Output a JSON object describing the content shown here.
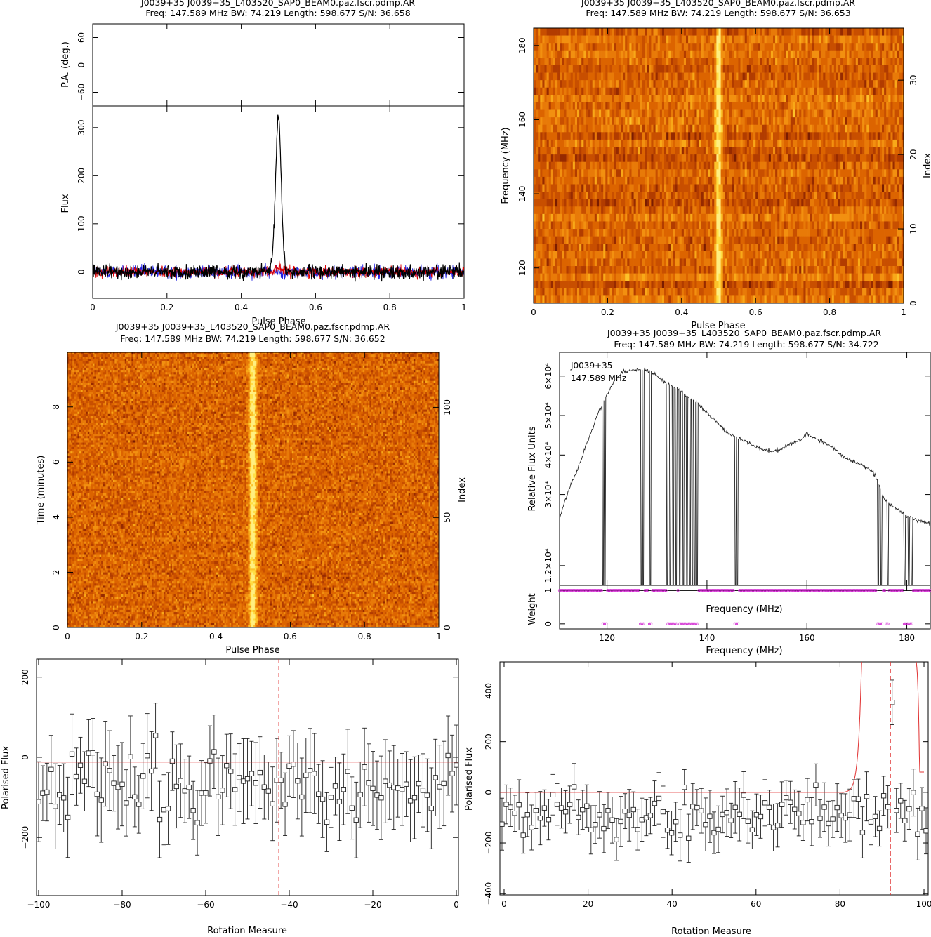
{
  "chart_data": [
    {
      "id": "p1",
      "type": "line",
      "title_line1": "J0039+35  J0039+35_L403520_SAP0_BEAM0.paz.fscr.pdmp.AR",
      "title_line2": "Freq: 147.589 MHz BW: 74.219 Length: 598.677 S/N: 36.658",
      "pa_ylabel": "P.A. (deg.)",
      "pa_ticks": [
        "-60",
        "0",
        "60"
      ],
      "pa_ylim": [
        -90,
        90
      ],
      "ylabel": "Flux",
      "xlabel": "Pulse Phase",
      "xlim": [
        0,
        1
      ],
      "ylim": [
        -55,
        345
      ],
      "x_ticks": [
        "0",
        "0.2",
        "0.4",
        "0.6",
        "0.8",
        "1"
      ],
      "y_ticks": [
        "0",
        "100",
        "200",
        "300"
      ],
      "series": [
        {
          "values_desc": "total intensity",
          "color": "#000000",
          "peak": {
            "x": 0.5,
            "y": 323
          },
          "noise_level": 10
        },
        {
          "values_desc": "linear",
          "color": "#e00000",
          "noise_level": 8
        },
        {
          "values_desc": "circular",
          "color": "#2020e0",
          "noise_level": 10
        }
      ]
    },
    {
      "id": "p2",
      "type": "heatmap",
      "title_line1": "J0039+35  J0039+35_L403520_SAP0_BEAM0.paz.fscr.pdmp.AR",
      "title_line2": "Freq: 147.589 MHz BW: 74.219 Length: 598.677 S/N: 36.653",
      "xlabel": "Pulse Phase",
      "ylabel": "Frequency (MHz)",
      "right_label": "Index",
      "xlim": [
        0,
        1
      ],
      "ylim": [
        110.48,
        184.7
      ],
      "x_ticks": [
        "0",
        "0.2",
        "0.4",
        "0.6",
        "0.8",
        "1"
      ],
      "y_ticks": [
        "120",
        "140",
        "160",
        "180"
      ],
      "right_ticks": [
        "0",
        "10",
        "20",
        "30"
      ],
      "right_lim": [
        0,
        37
      ],
      "pulse_phase": 0.5
    },
    {
      "id": "p3",
      "type": "heatmap",
      "title_line1": "J0039+35  J0039+35_L403520_SAP0_BEAM0.paz.fscr.pdmp.AR",
      "title_line2": "Freq: 147.589 MHz BW: 74.219 Length: 598.677 S/N: 36.652",
      "xlabel": "Pulse Phase",
      "ylabel": "Time (minutes)",
      "right_label": "Index",
      "xlim": [
        0,
        1
      ],
      "ylim": [
        0,
        9.98
      ],
      "x_ticks": [
        "0",
        "0.2",
        "0.4",
        "0.6",
        "0.8",
        "1"
      ],
      "y_ticks": [
        "0",
        "2",
        "4",
        "6",
        "8"
      ],
      "right_ticks": [
        "0",
        "50",
        "100"
      ],
      "right_lim": [
        0,
        125
      ],
      "pulse_phase": 0.5
    },
    {
      "id": "p4",
      "type": "line",
      "title_line1": "J0039+35  J0039+35_L403520_SAP0_BEAM0.paz.fscr.pdmp.AR",
      "title_line2": "Freq: 147.589 MHz BW: 74.219 Length: 598.677 S/N: 34.722",
      "legend_line1": "J0039+35",
      "legend_line2": "147.589 MHz",
      "ylabel": "Relative Flux Units",
      "xlabel": "Frequency (MHz)",
      "weight_label": "Weight",
      "weight_xlabel": "Frequency (MHz)",
      "weight_ticks": [
        "0",
        "1"
      ],
      "xlim": [
        110.5,
        184.7
      ],
      "ylim": [
        7000,
        66000
      ],
      "x_ticks": [
        "120",
        "140",
        "160",
        "180"
      ],
      "y_tick_labels": [
        "1.2×10⁴",
        "3×10⁴",
        "4×10⁴",
        "5×10⁴",
        "6×10⁴"
      ],
      "y_tick_values": [
        12000,
        30000,
        40000,
        50000,
        60000
      ],
      "bandpass": {
        "x": [
          110.5,
          112,
          114,
          116,
          118,
          119.5,
          121,
          123,
          125,
          127,
          129,
          131,
          133,
          135,
          137,
          139,
          141,
          143,
          145,
          147,
          149,
          151,
          153,
          155,
          157,
          159,
          160,
          161,
          163,
          165,
          167,
          169,
          171,
          173,
          174,
          175,
          176,
          178,
          180,
          182,
          184.7
        ],
        "y": [
          24000,
          30000,
          36000,
          43000,
          50000,
          54000,
          58000,
          61000,
          61500,
          61800,
          61000,
          59000,
          57500,
          56000,
          54000,
          52000,
          49500,
          47000,
          45000,
          44000,
          42500,
          41500,
          41000,
          41500,
          43000,
          44000,
          45500,
          44500,
          43500,
          42000,
          40000,
          38500,
          37500,
          36000,
          34000,
          30000,
          28000,
          26500,
          24500,
          23500,
          22500
        ]
      },
      "zapped_channels_mhz": [
        119.2,
        119.6,
        126.9,
        127.2,
        128.7,
        132.1,
        132.6,
        133.2,
        133.9,
        134.6,
        135.3,
        136.0,
        136.6,
        137.1,
        137.6,
        138.1,
        145.7,
        146.1,
        174.3,
        174.9,
        176.2,
        179.6,
        180.4,
        181.0
      ]
    },
    {
      "id": "p5",
      "type": "scatter",
      "xlabel": "Rotation Measure",
      "ylabel": "Polarised Flux",
      "xlim": [
        -100.5,
        0.5
      ],
      "ylim": [
        -345,
        245
      ],
      "x_ticks": [
        "−100",
        "−80",
        "−60",
        "−40",
        "−20",
        "0"
      ],
      "y_ticks": [
        "−200",
        "0",
        "200"
      ],
      "best_rm": -42.5,
      "fit_level": -12,
      "error_bar": 85
    },
    {
      "id": "p6",
      "type": "scatter",
      "xlabel": "Rotation Measure",
      "ylabel": "Polarised Flux",
      "xlim": [
        -1,
        101
      ],
      "ylim": [
        -405,
        515
      ],
      "x_ticks": [
        "0",
        "20",
        "40",
        "60",
        "80",
        "100"
      ],
      "y_ticks": [
        "−400",
        "−200",
        "0",
        "200",
        "400"
      ],
      "best_rm": 92,
      "peak_value": 355,
      "fit_level": 0,
      "error_bar": 85
    }
  ]
}
